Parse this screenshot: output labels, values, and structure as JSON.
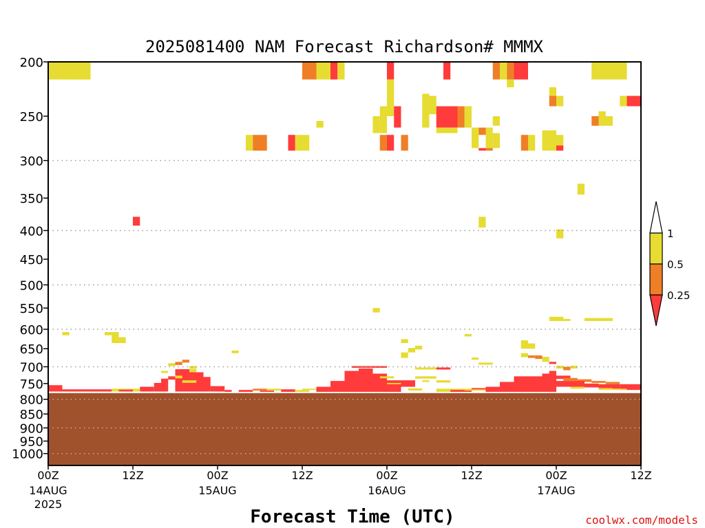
{
  "chart_data": {
    "type": "heatmap",
    "title": "2025081400 NAM Forecast Richardson# MMMX",
    "xlabel": "Forecast Time (UTC)",
    "ylabel": "",
    "credit": "coolwx.com/models",
    "x_range_hours": [
      0,
      84
    ],
    "x_ticks": [
      {
        "hour": 0,
        "label": "00Z",
        "sub": [
          "14AUG",
          "2025"
        ]
      },
      {
        "hour": 12,
        "label": "12Z",
        "sub": []
      },
      {
        "hour": 24,
        "label": "00Z",
        "sub": [
          "15AUG"
        ]
      },
      {
        "hour": 36,
        "label": "12Z",
        "sub": []
      },
      {
        "hour": 48,
        "label": "00Z",
        "sub": [
          "16AUG"
        ]
      },
      {
        "hour": 60,
        "label": "12Z",
        "sub": []
      },
      {
        "hour": 72,
        "label": "00Z",
        "sub": [
          "17AUG"
        ]
      },
      {
        "hour": 84,
        "label": "12Z",
        "sub": []
      }
    ],
    "y_axis": "pressure (log scale, inverted)",
    "y_range_hpa": [
      200,
      1050
    ],
    "y_ticks": [
      200,
      250,
      300,
      350,
      400,
      450,
      500,
      550,
      600,
      650,
      700,
      750,
      800,
      850,
      900,
      950,
      1000
    ],
    "gridlines_hpa": [
      300,
      400,
      500,
      600,
      700,
      800,
      900,
      1000
    ],
    "below_ground_hpa": 780,
    "below_ground_color": "#a0522d",
    "colorbar": {
      "labels": [
        "1",
        "0.5",
        "0.25"
      ],
      "colors": {
        "lt_025": "#ff3b3b",
        "025_05": "#ef7f26",
        "05_1": "#e6dc32",
        "gt_1": "#ffffff"
      }
    },
    "levels": [
      "<0.25",
      "0.25-0.5",
      "0.5-1"
    ],
    "cells": [
      [
        0,
        6,
        200,
        215,
        "05_1"
      ],
      [
        3,
        6,
        200,
        215,
        "05_1"
      ],
      [
        36,
        38,
        200,
        215,
        "025_05"
      ],
      [
        38,
        40,
        200,
        215,
        "05_1"
      ],
      [
        40,
        41,
        200,
        215,
        "lt_025"
      ],
      [
        41,
        42,
        200,
        215,
        "05_1"
      ],
      [
        48,
        49,
        200,
        215,
        "lt_025"
      ],
      [
        56,
        57,
        200,
        215,
        "lt_025"
      ],
      [
        63,
        64,
        200,
        215,
        "025_05"
      ],
      [
        64,
        65,
        200,
        215,
        "05_1"
      ],
      [
        65,
        66,
        200,
        215,
        "025_05"
      ],
      [
        66,
        68,
        200,
        215,
        "lt_025"
      ],
      [
        77,
        82,
        200,
        215,
        "05_1"
      ],
      [
        65,
        66,
        215,
        222,
        "05_1"
      ],
      [
        71,
        72,
        222,
        230,
        "05_1"
      ],
      [
        71,
        72,
        230,
        240,
        "025_05"
      ],
      [
        72,
        73,
        230,
        240,
        "05_1"
      ],
      [
        53,
        54,
        228,
        240,
        "05_1"
      ],
      [
        54,
        55,
        230,
        240,
        "05_1"
      ],
      [
        48,
        49,
        215,
        240,
        "05_1"
      ],
      [
        81,
        82,
        230,
        240,
        "05_1"
      ],
      [
        82,
        84,
        230,
        240,
        "lt_025"
      ],
      [
        47,
        48,
        240,
        250,
        "05_1"
      ],
      [
        48,
        49,
        240,
        250,
        "05_1"
      ],
      [
        49,
        50,
        240,
        250,
        "lt_025"
      ],
      [
        53,
        54,
        240,
        262,
        "05_1"
      ],
      [
        54,
        55,
        240,
        248,
        "05_1"
      ],
      [
        55,
        58,
        240,
        262,
        "lt_025"
      ],
      [
        58,
        59,
        240,
        262,
        "025_05"
      ],
      [
        59,
        60,
        240,
        262,
        "05_1"
      ],
      [
        55,
        58,
        262,
        268,
        "05_1"
      ],
      [
        78,
        79,
        245,
        252,
        "05_1"
      ],
      [
        77,
        78,
        250,
        260,
        "025_05"
      ],
      [
        78,
        80,
        250,
        260,
        "05_1"
      ],
      [
        63,
        64,
        250,
        260,
        "05_1"
      ],
      [
        46,
        47,
        250,
        268,
        "05_1"
      ],
      [
        47,
        48,
        250,
        268,
        "05_1"
      ],
      [
        49,
        50,
        250,
        262,
        "lt_025"
      ],
      [
        38,
        39,
        255,
        262,
        "05_1"
      ],
      [
        60,
        61,
        262,
        285,
        "05_1"
      ],
      [
        61,
        62,
        262,
        270,
        "025_05"
      ],
      [
        62,
        63,
        262,
        285,
        "05_1"
      ],
      [
        63,
        64,
        268,
        285,
        "05_1"
      ],
      [
        28,
        29,
        270,
        288,
        "05_1"
      ],
      [
        29,
        30,
        270,
        288,
        "025_05"
      ],
      [
        30,
        31,
        270,
        288,
        "025_05"
      ],
      [
        34,
        35,
        270,
        288,
        "lt_025"
      ],
      [
        35,
        37,
        270,
        288,
        "05_1"
      ],
      [
        47,
        48,
        270,
        288,
        "025_05"
      ],
      [
        48,
        49,
        270,
        288,
        "lt_025"
      ],
      [
        50,
        51,
        270,
        288,
        "025_05"
      ],
      [
        61,
        62,
        285,
        288,
        "lt_025"
      ],
      [
        62,
        63,
        285,
        288,
        "025_05"
      ],
      [
        67,
        68,
        270,
        288,
        "025_05"
      ],
      [
        68,
        69,
        270,
        288,
        "05_1"
      ],
      [
        70,
        72,
        265,
        288,
        "05_1"
      ],
      [
        72,
        73,
        270,
        288,
        "05_1"
      ],
      [
        72,
        73,
        282,
        288,
        "lt_025"
      ],
      [
        75,
        76,
        330,
        345,
        "05_1"
      ],
      [
        61,
        62,
        378,
        395,
        "05_1"
      ],
      [
        72,
        73,
        398,
        413,
        "05_1"
      ],
      [
        12,
        13,
        378,
        392,
        "lt_025"
      ],
      [
        46,
        47,
        550,
        560,
        "05_1"
      ],
      [
        71,
        73,
        570,
        580,
        "05_1"
      ],
      [
        73,
        74,
        575,
        580,
        "05_1"
      ],
      [
        76,
        80,
        573,
        580,
        "05_1"
      ],
      [
        2,
        3,
        607,
        615,
        "05_1"
      ],
      [
        8,
        9,
        607,
        615,
        "05_1"
      ],
      [
        9,
        10,
        607,
        620,
        "05_1"
      ],
      [
        9,
        11,
        620,
        635,
        "05_1"
      ],
      [
        50,
        51,
        625,
        635,
        "05_1"
      ],
      [
        51,
        52,
        648,
        660,
        "05_1"
      ],
      [
        52,
        53,
        642,
        652,
        "05_1"
      ],
      [
        50,
        51,
        660,
        675,
        "05_1"
      ],
      [
        59,
        60,
        612,
        618,
        "05_1"
      ],
      [
        26,
        27,
        655,
        662,
        "05_1"
      ],
      [
        60,
        61,
        674,
        680,
        "05_1"
      ],
      [
        67,
        68,
        628,
        650,
        "05_1"
      ],
      [
        68,
        69,
        636,
        650,
        "05_1"
      ],
      [
        67,
        68,
        662,
        673,
        "05_1"
      ],
      [
        68,
        69,
        668,
        675,
        "025_05"
      ],
      [
        69,
        70,
        668,
        678,
        "025_05"
      ],
      [
        70,
        71,
        672,
        686,
        "05_1"
      ],
      [
        71,
        72,
        686,
        692,
        "lt_025"
      ],
      [
        17,
        18,
        690,
        698,
        "05_1"
      ],
      [
        18,
        19,
        686,
        695,
        "025_05"
      ],
      [
        19,
        20,
        680,
        688,
        "025_05"
      ],
      [
        61,
        62,
        688,
        694,
        "05_1"
      ],
      [
        62,
        63,
        688,
        694,
        "05_1"
      ],
      [
        20,
        21,
        698,
        706,
        "05_1"
      ],
      [
        74,
        75,
        697,
        705,
        "05_1"
      ],
      [
        72,
        73,
        697,
        705,
        "05_1"
      ],
      [
        73,
        74,
        700,
        710,
        "025_05"
      ],
      [
        43,
        48,
        698,
        703,
        "lt_025"
      ],
      [
        52,
        55,
        702,
        708,
        "05_1"
      ],
      [
        55,
        57,
        702,
        708,
        "lt_025"
      ],
      [
        16,
        17,
        712,
        718,
        "05_1"
      ],
      [
        18,
        20,
        707,
        717,
        "lt_025"
      ],
      [
        20,
        21,
        707,
        717,
        "05_1"
      ],
      [
        17,
        18,
        728,
        738,
        "lt_025"
      ],
      [
        18,
        22,
        716,
        775,
        "lt_025"
      ],
      [
        22,
        23,
        730,
        775,
        "lt_025"
      ],
      [
        16,
        17,
        735,
        775,
        "lt_025"
      ],
      [
        15,
        16,
        748,
        775,
        "lt_025"
      ],
      [
        13,
        15,
        760,
        775,
        "lt_025"
      ],
      [
        23,
        25,
        758,
        775,
        "lt_025"
      ],
      [
        19,
        21,
        740,
        748,
        "05_1"
      ],
      [
        18,
        19,
        726,
        734,
        "05_1"
      ],
      [
        40,
        42,
        742,
        776,
        "lt_025"
      ],
      [
        42,
        44,
        712,
        776,
        "lt_025"
      ],
      [
        44,
        46,
        705,
        776,
        "lt_025"
      ],
      [
        46,
        48,
        720,
        776,
        "lt_025"
      ],
      [
        38,
        40,
        760,
        776,
        "lt_025"
      ],
      [
        48,
        50,
        740,
        776,
        "lt_025"
      ],
      [
        47,
        49,
        728,
        734,
        "05_1"
      ],
      [
        48,
        50,
        748,
        752,
        "05_1"
      ],
      [
        50,
        52,
        740,
        760,
        "lt_025"
      ],
      [
        51,
        53,
        765,
        772,
        "05_1"
      ],
      [
        52,
        55,
        728,
        735,
        "05_1"
      ],
      [
        53,
        54,
        740,
        745,
        "05_1"
      ],
      [
        55,
        57,
        740,
        747,
        "05_1"
      ],
      [
        66,
        70,
        728,
        776,
        "lt_025"
      ],
      [
        70,
        72,
        720,
        776,
        "lt_025"
      ],
      [
        64,
        66,
        745,
        776,
        "lt_025"
      ],
      [
        62,
        64,
        760,
        776,
        "lt_025"
      ],
      [
        71,
        72,
        712,
        720,
        "lt_025"
      ],
      [
        72,
        74,
        726,
        736,
        "lt_025"
      ],
      [
        73,
        75,
        733,
        742,
        "025_05"
      ],
      [
        75,
        77,
        737,
        745,
        "025_05"
      ],
      [
        77,
        79,
        742,
        748,
        "025_05"
      ],
      [
        79,
        81,
        745,
        752,
        "025_05"
      ],
      [
        72,
        76,
        742,
        760,
        "lt_025"
      ],
      [
        76,
        78,
        750,
        762,
        "lt_025"
      ],
      [
        78,
        81,
        752,
        766,
        "lt_025"
      ],
      [
        81,
        84,
        752,
        770,
        "lt_025"
      ],
      [
        74,
        76,
        760,
        766,
        "05_1"
      ],
      [
        78,
        80,
        764,
        770,
        "05_1"
      ],
      [
        80,
        82,
        766,
        770,
        "05_1"
      ],
      [
        0,
        2,
        755,
        775,
        "lt_025"
      ],
      [
        2,
        4,
        768,
        775,
        "lt_025"
      ],
      [
        4,
        9,
        768,
        775,
        "lt_025"
      ],
      [
        9,
        13,
        766,
        775,
        "05_1"
      ],
      [
        10,
        12,
        769,
        775,
        "lt_025"
      ],
      [
        25,
        26,
        770,
        776,
        "lt_025"
      ],
      [
        27,
        29,
        770,
        776,
        "lt_025"
      ],
      [
        29,
        31,
        766,
        772,
        "025_05"
      ],
      [
        31,
        33,
        766,
        772,
        "05_1"
      ],
      [
        30,
        32,
        772,
        776,
        "lt_025"
      ],
      [
        33,
        35,
        768,
        776,
        "lt_025"
      ],
      [
        35,
        37,
        770,
        776,
        "05_1"
      ],
      [
        36,
        38,
        766,
        770,
        "05_1"
      ],
      [
        55,
        60,
        766,
        776,
        "05_1"
      ],
      [
        57,
        60,
        770,
        776,
        "lt_025"
      ],
      [
        59,
        62,
        766,
        772,
        "05_1"
      ],
      [
        60,
        62,
        764,
        768,
        "lt_025"
      ]
    ]
  }
}
